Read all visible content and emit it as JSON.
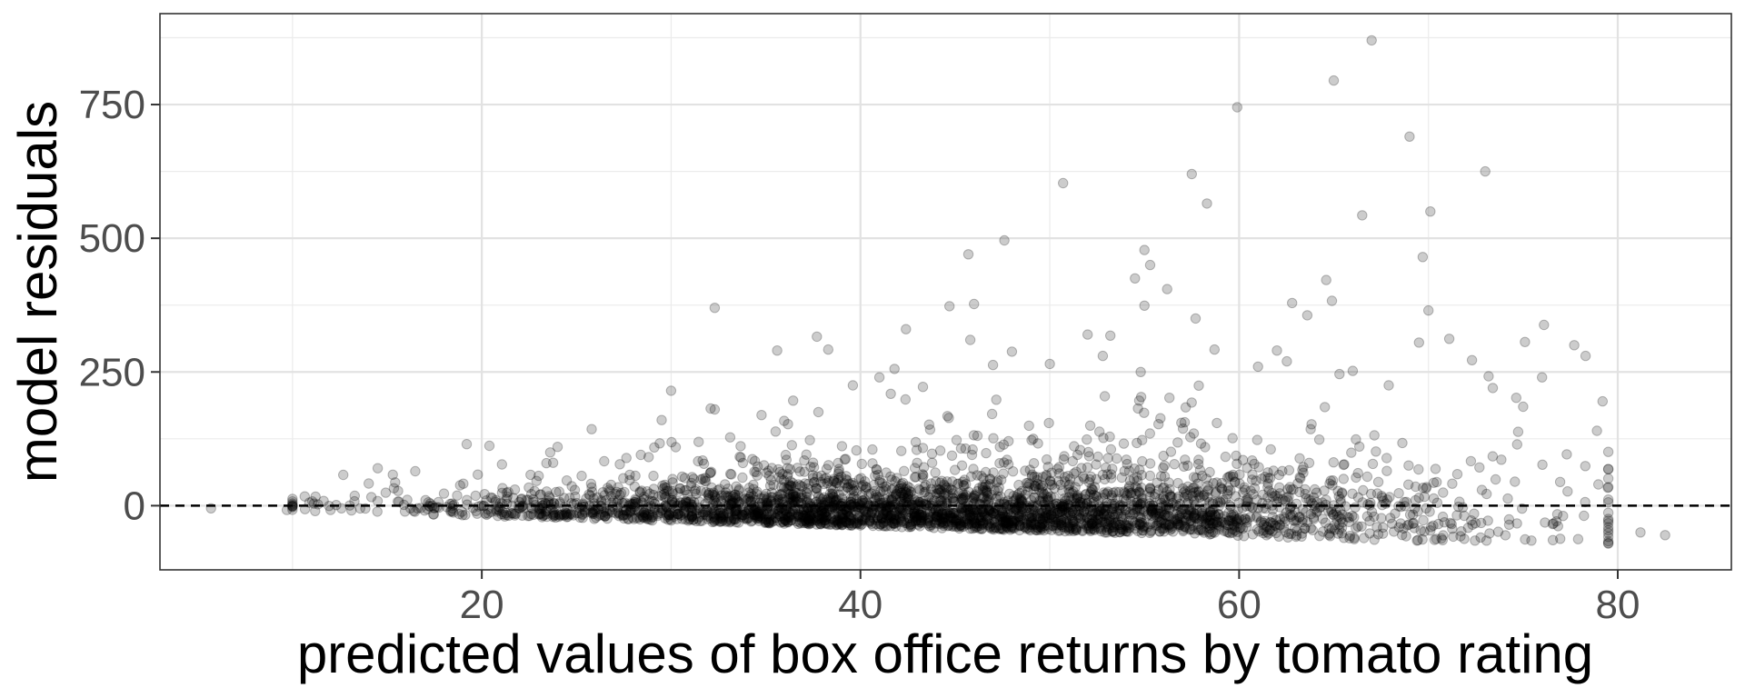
{
  "chart_data": {
    "type": "scatter",
    "title": "",
    "xlabel": "predicted values of box office returns by tomato rating",
    "ylabel": "model residuals",
    "xlim": [
      3,
      86
    ],
    "ylim": [
      -120,
      920
    ],
    "x_ticks": [
      20,
      40,
      60,
      80
    ],
    "y_ticks": [
      0,
      250,
      500,
      750
    ],
    "x_tick_labels": [
      "20",
      "40",
      "60",
      "80"
    ],
    "y_tick_labels": [
      "0",
      "250",
      "500",
      "750"
    ],
    "grid": true,
    "reference_line": {
      "y": 0,
      "style": "dashed"
    },
    "point_color": "#000000",
    "point_alpha": 0.2,
    "series": [
      {
        "outliers": [
          [
            67.0,
            870
          ],
          [
            65.0,
            795
          ],
          [
            59.9,
            745
          ],
          [
            69.0,
            690
          ],
          [
            73.0,
            625
          ],
          [
            57.5,
            620
          ],
          [
            50.7,
            603
          ],
          [
            58.3,
            565
          ],
          [
            66.5,
            543
          ],
          [
            70.1,
            550
          ],
          [
            47.6,
            496
          ],
          [
            45.7,
            470
          ],
          [
            69.7,
            465
          ],
          [
            55.0,
            478
          ],
          [
            55.3,
            450
          ],
          [
            54.5,
            425
          ],
          [
            56.2,
            405
          ],
          [
            64.6,
            422
          ],
          [
            32.3,
            370
          ],
          [
            44.7,
            373
          ],
          [
            46.0,
            377
          ],
          [
            55.0,
            374
          ],
          [
            62.8,
            379
          ],
          [
            64.9,
            383
          ],
          [
            70.0,
            365
          ],
          [
            42.4,
            330
          ],
          [
            37.7,
            316
          ],
          [
            41.0,
            240
          ],
          [
            45.8,
            310
          ],
          [
            52.0,
            320
          ],
          [
            53.2,
            318
          ],
          [
            57.7,
            350
          ],
          [
            63.6,
            356
          ],
          [
            71.1,
            312
          ],
          [
            76.1,
            338
          ],
          [
            78.3,
            280
          ],
          [
            77.7,
            300
          ],
          [
            69.5,
            305
          ],
          [
            75.1,
            306
          ],
          [
            35.6,
            290
          ],
          [
            38.3,
            292
          ],
          [
            47.0,
            263
          ],
          [
            50.0,
            265
          ],
          [
            52.8,
            280
          ],
          [
            58.7,
            292
          ],
          [
            62.0,
            290
          ],
          [
            65.3,
            246
          ],
          [
            72.3,
            272
          ],
          [
            30.0,
            215
          ],
          [
            32.3,
            180
          ],
          [
            39.6,
            225
          ],
          [
            43.3,
            222
          ],
          [
            48.0,
            288
          ],
          [
            54.8,
            250
          ],
          [
            61.0,
            260
          ],
          [
            66.0,
            252
          ],
          [
            67.9,
            225
          ],
          [
            73.4,
            220
          ],
          [
            76.0,
            240
          ],
          [
            79.2,
            195
          ],
          [
            28.4,
            95
          ],
          [
            29.5,
            160
          ],
          [
            25.8,
            143
          ],
          [
            24.0,
            110
          ],
          [
            20.4,
            112
          ],
          [
            19.2,
            115
          ],
          [
            14.5,
            70
          ],
          [
            15.3,
            58
          ],
          [
            75.0,
            185
          ],
          [
            78.9,
            140
          ],
          [
            81.2,
            -50
          ],
          [
            82.5,
            -55
          ],
          [
            5.7,
            -5
          ],
          [
            9.7,
            -8
          ],
          [
            11.2,
            -10
          ]
        ],
        "band": {
          "x_min": 10,
          "x_max": 79.5,
          "count": 3400,
          "seed": 20240601
        }
      }
    ]
  }
}
